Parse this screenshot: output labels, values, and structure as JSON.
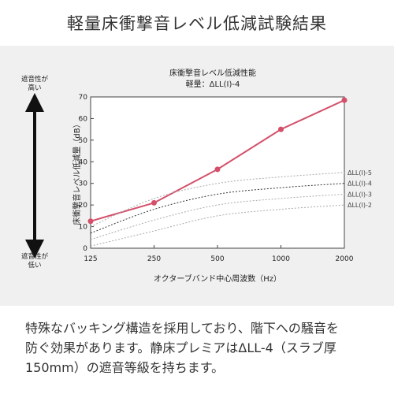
{
  "page_title": "軽量床衝撃音レベル低減試験結果",
  "side_labels": {
    "top": [
      "遮音性が",
      "高い"
    ],
    "bottom": [
      "遮音性が",
      "低い"
    ]
  },
  "description": [
    "特殊なバッキング構造を採用しており、階下への騒音を",
    "防ぐ効果があります。静床プレミアはΔLL-4（スラブ厚",
    "150mm）の遮音等級を持ちます。"
  ],
  "colors": {
    "measured": "#d4506a",
    "panel": "#f0f0f0"
  },
  "chart_data": {
    "type": "line",
    "title": "床衝撃音レベル低減性能",
    "subtitle": "軽量：ΔLL(Ⅰ)-4",
    "xlabel": "オクターブバンド中心周波数（Hz）",
    "ylabel": "床衝撃音レベル低減量（dB）",
    "categories": [
      "125",
      "250",
      "500",
      "1000",
      "2000"
    ],
    "ylim": [
      0,
      70
    ],
    "yticks": [
      0,
      10,
      20,
      30,
      40,
      50,
      60,
      70
    ],
    "grid": false,
    "series": [
      {
        "name": "",
        "style": "measured",
        "values": [
          12.5,
          21,
          36.5,
          55,
          68.5
        ]
      },
      {
        "name": "ΔLL(Ⅰ)-5",
        "style": "reference",
        "values": [
          10,
          23,
          30,
          33,
          35
        ]
      },
      {
        "name": "ΔLL(Ⅰ)-4",
        "style": "reference-emphasis",
        "values": [
          7,
          18,
          25,
          28,
          30
        ]
      },
      {
        "name": "ΔLL(Ⅰ)-3",
        "style": "reference",
        "values": [
          4,
          13,
          20,
          23,
          25
        ]
      },
      {
        "name": "ΔLL(Ⅰ)-2",
        "style": "reference",
        "values": [
          1,
          8,
          15,
          18,
          20
        ]
      }
    ]
  }
}
